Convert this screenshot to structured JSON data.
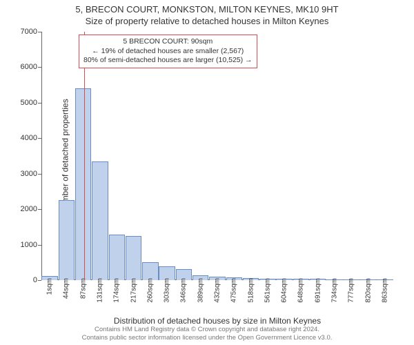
{
  "titles": {
    "line1": "5, BRECON COURT, MONKSTON, MILTON KEYNES, MK10 9HT",
    "line2": "Size of property relative to detached houses in Milton Keynes"
  },
  "chart": {
    "type": "bar",
    "ylabel": "Number of detached properties",
    "xlabel": "Distribution of detached houses by size in Milton Keynes",
    "ylim": [
      0,
      7000
    ],
    "ytick_step": 1000,
    "yticks": [
      0,
      1000,
      2000,
      3000,
      4000,
      5000,
      6000,
      7000
    ],
    "xtick_labels": [
      "1sqm",
      "44sqm",
      "87sqm",
      "131sqm",
      "174sqm",
      "217sqm",
      "260sqm",
      "303sqm",
      "346sqm",
      "389sqm",
      "432sqm",
      "475sqm",
      "518sqm",
      "561sqm",
      "604sqm",
      "648sqm",
      "691sqm",
      "734sqm",
      "777sqm",
      "820sqm",
      "863sqm"
    ],
    "bar_count": 21,
    "values": [
      120,
      2250,
      5400,
      3350,
      1280,
      1250,
      500,
      380,
      320,
      130,
      100,
      80,
      60,
      40,
      40,
      30,
      30,
      20,
      20,
      20,
      15
    ],
    "bar_fill": "#c0d1ec",
    "bar_stroke": "#6a8cc4",
    "axis_color": "#666666",
    "background_color": "#ffffff",
    "tick_fontsize": 10,
    "label_fontsize": 12,
    "bar_width_ratio": 0.96
  },
  "marker": {
    "value_sqm": 90,
    "xmin_sqm": 1,
    "xstep_sqm": 43,
    "color": "#d94a4a"
  },
  "annotation": {
    "lines": [
      "5 BRECON COURT: 90sqm",
      "← 19% of detached houses are smaller (2,567)",
      "80% of semi-detached houses are larger (10,525) →"
    ],
    "border_color": "#d94a4a",
    "text_color": "#333333",
    "fontsize": 10.5
  },
  "footer": {
    "line1": "Contains HM Land Registry data © Crown copyright and database right 2024.",
    "line2": "Contains public sector information licensed under the Open Government Licence v3.0."
  }
}
